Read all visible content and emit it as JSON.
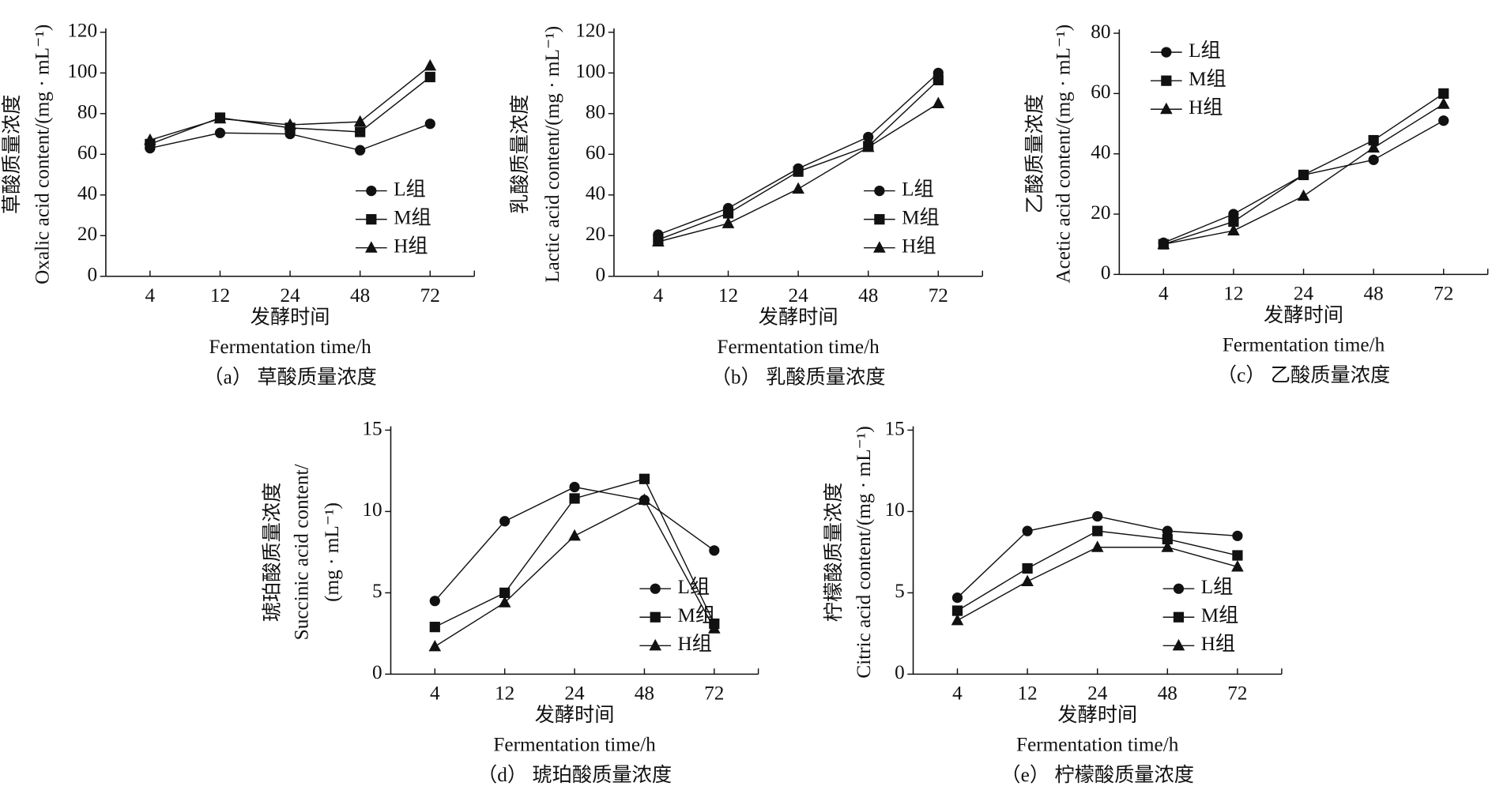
{
  "chart_data": [
    {
      "type": "line",
      "title": "（a） 草酸质量浓度",
      "x_label": [
        "发酵时间",
        "Fermentation time/h"
      ],
      "y_label": [
        "草酸质量浓度",
        "Oxalic acid content/(mg · mL⁻¹)"
      ],
      "categories": [
        "4",
        "12",
        "24",
        "48",
        "72"
      ],
      "ylim": [
        0,
        120
      ],
      "yticks": [
        0,
        20,
        40,
        60,
        80,
        100,
        120
      ],
      "legend": "lower right",
      "series": [
        {
          "name": "L组",
          "color": "#111111",
          "marker": "circle",
          "values": [
            63,
            70.5,
            70,
            62,
            75
          ]
        },
        {
          "name": "M组",
          "color": "#111111",
          "marker": "square",
          "values": [
            65,
            78,
            73,
            71,
            98
          ]
        },
        {
          "name": "H组",
          "color": "#111111",
          "marker": "triangle",
          "values": [
            67,
            77.5,
            74.5,
            76,
            103.5
          ]
        }
      ]
    },
    {
      "type": "line",
      "title": "（b） 乳酸质量浓度",
      "x_label": [
        "发酵时间",
        "Fermentation time/h"
      ],
      "y_label": [
        "乳酸质量浓度",
        "Lactic acid content/(mg · mL⁻¹)"
      ],
      "categories": [
        "4",
        "12",
        "24",
        "48",
        "72"
      ],
      "ylim": [
        0,
        120
      ],
      "yticks": [
        0,
        20,
        40,
        60,
        80,
        100,
        120
      ],
      "legend": "lower right",
      "series": [
        {
          "name": "L组",
          "color": "#111111",
          "marker": "circle",
          "values": [
            20.5,
            33.5,
            53,
            68.5,
            100
          ]
        },
        {
          "name": "M组",
          "color": "#111111",
          "marker": "square",
          "values": [
            18,
            31,
            51.5,
            64,
            96.5
          ]
        },
        {
          "name": "H组",
          "color": "#111111",
          "marker": "triangle",
          "values": [
            17,
            26,
            43,
            63.5,
            85
          ]
        }
      ]
    },
    {
      "type": "line",
      "title": "（c） 乙酸质量浓度",
      "x_label": [
        "发酵时间",
        "Fermentation time/h"
      ],
      "y_label": [
        "乙酸质量浓度",
        "Acetic acid content/(mg · mL⁻¹)"
      ],
      "categories": [
        "4",
        "12",
        "24",
        "48",
        "72"
      ],
      "ylim": [
        0,
        80
      ],
      "yticks": [
        0,
        20,
        40,
        60,
        80
      ],
      "legend": "upper left",
      "series": [
        {
          "name": "L组",
          "color": "#111111",
          "marker": "circle",
          "values": [
            10.5,
            20,
            33,
            38,
            51
          ]
        },
        {
          "name": "M组",
          "color": "#111111",
          "marker": "square",
          "values": [
            10,
            17.5,
            33,
            44.5,
            60
          ]
        },
        {
          "name": "H组",
          "color": "#111111",
          "marker": "triangle",
          "values": [
            10,
            14.5,
            26,
            42,
            56.5
          ]
        }
      ]
    },
    {
      "type": "line",
      "title": "（d） 琥珀酸质量浓度",
      "x_label": [
        "发酵时间",
        "Fermentation time/h"
      ],
      "y_label": [
        "琥珀酸质量浓度",
        "Succinic acid content/",
        "(mg · mL⁻¹)"
      ],
      "categories": [
        "4",
        "12",
        "24",
        "48",
        "72"
      ],
      "ylim": [
        0,
        15
      ],
      "yticks": [
        0,
        5,
        10,
        15
      ],
      "legend": "lower right",
      "series": [
        {
          "name": "L组",
          "color": "#111111",
          "marker": "circle",
          "values": [
            4.5,
            9.4,
            11.5,
            10.7,
            7.6
          ]
        },
        {
          "name": "M组",
          "color": "#111111",
          "marker": "square",
          "values": [
            2.9,
            5.0,
            10.8,
            12.0,
            3.1
          ]
        },
        {
          "name": "H组",
          "color": "#111111",
          "marker": "triangle",
          "values": [
            1.7,
            4.4,
            8.5,
            10.7,
            2.8
          ]
        }
      ]
    },
    {
      "type": "line",
      "title": "（e） 柠檬酸质量浓度",
      "x_label": [
        "发酵时间",
        "Fermentation time/h"
      ],
      "y_label": [
        "柠檬酸质量浓度",
        "Citric acid content/(mg · mL⁻¹)"
      ],
      "categories": [
        "4",
        "12",
        "24",
        "48",
        "72"
      ],
      "ylim": [
        0,
        15
      ],
      "yticks": [
        0,
        5,
        10,
        15
      ],
      "legend": "lower right",
      "series": [
        {
          "name": "L组",
          "color": "#111111",
          "marker": "circle",
          "values": [
            4.7,
            8.8,
            9.7,
            8.8,
            8.5
          ]
        },
        {
          "name": "M组",
          "color": "#111111",
          "marker": "square",
          "values": [
            3.9,
            6.5,
            8.8,
            8.3,
            7.3
          ]
        },
        {
          "name": "H组",
          "color": "#111111",
          "marker": "triangle",
          "values": [
            3.3,
            5.7,
            7.8,
            7.8,
            6.6
          ]
        }
      ]
    }
  ]
}
